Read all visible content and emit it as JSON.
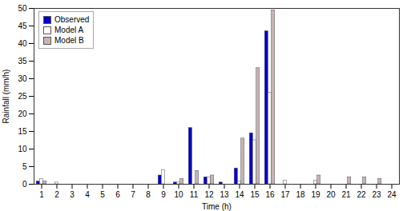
{
  "chart_data": {
    "type": "bar",
    "xlabel": "Time (h)",
    "ylabel": "Rainfall (mm/h)",
    "x": [
      1,
      2,
      3,
      4,
      5,
      6,
      7,
      8,
      9,
      10,
      11,
      12,
      13,
      14,
      15,
      16,
      17,
      18,
      19,
      20,
      21,
      22,
      23,
      24
    ],
    "series": [
      {
        "name": "Observed",
        "color": "#0000cc",
        "values": [
          0.8,
          0,
          0,
          0,
          0,
          0,
          0,
          0,
          2.5,
          0.5,
          16.0,
          2.0,
          0.5,
          4.5,
          14.5,
          43.5,
          0,
          0,
          0,
          0,
          0,
          0,
          0,
          0
        ]
      },
      {
        "name": "Model A",
        "color": "#ffffff",
        "values": [
          1.5,
          0.5,
          0,
          0,
          0,
          0,
          0,
          0,
          4.0,
          0.5,
          0,
          2.0,
          0,
          0.8,
          12.5,
          26.0,
          1.0,
          0,
          1.0,
          0,
          0,
          0,
          0,
          0
        ]
      },
      {
        "name": "Model B",
        "color": "#c8b4b4",
        "values": [
          0.8,
          0,
          0,
          0,
          0,
          0,
          0,
          0,
          0,
          1.5,
          3.8,
          2.5,
          0,
          13.0,
          33.0,
          49.5,
          0,
          0,
          2.5,
          0,
          2.0,
          2.0,
          1.5,
          0
        ]
      }
    ],
    "xlim": [
      0.5,
      24.5
    ],
    "xticks": [
      1,
      2,
      3,
      4,
      5,
      6,
      7,
      8,
      9,
      10,
      11,
      12,
      13,
      14,
      15,
      16,
      17,
      18,
      19,
      20,
      21,
      22,
      23,
      24
    ],
    "ylim": [
      0,
      50
    ],
    "yticks": [
      0,
      5,
      10,
      15,
      20,
      25,
      30,
      35,
      40,
      45,
      50
    ],
    "grid": false,
    "legend": "upper left"
  }
}
